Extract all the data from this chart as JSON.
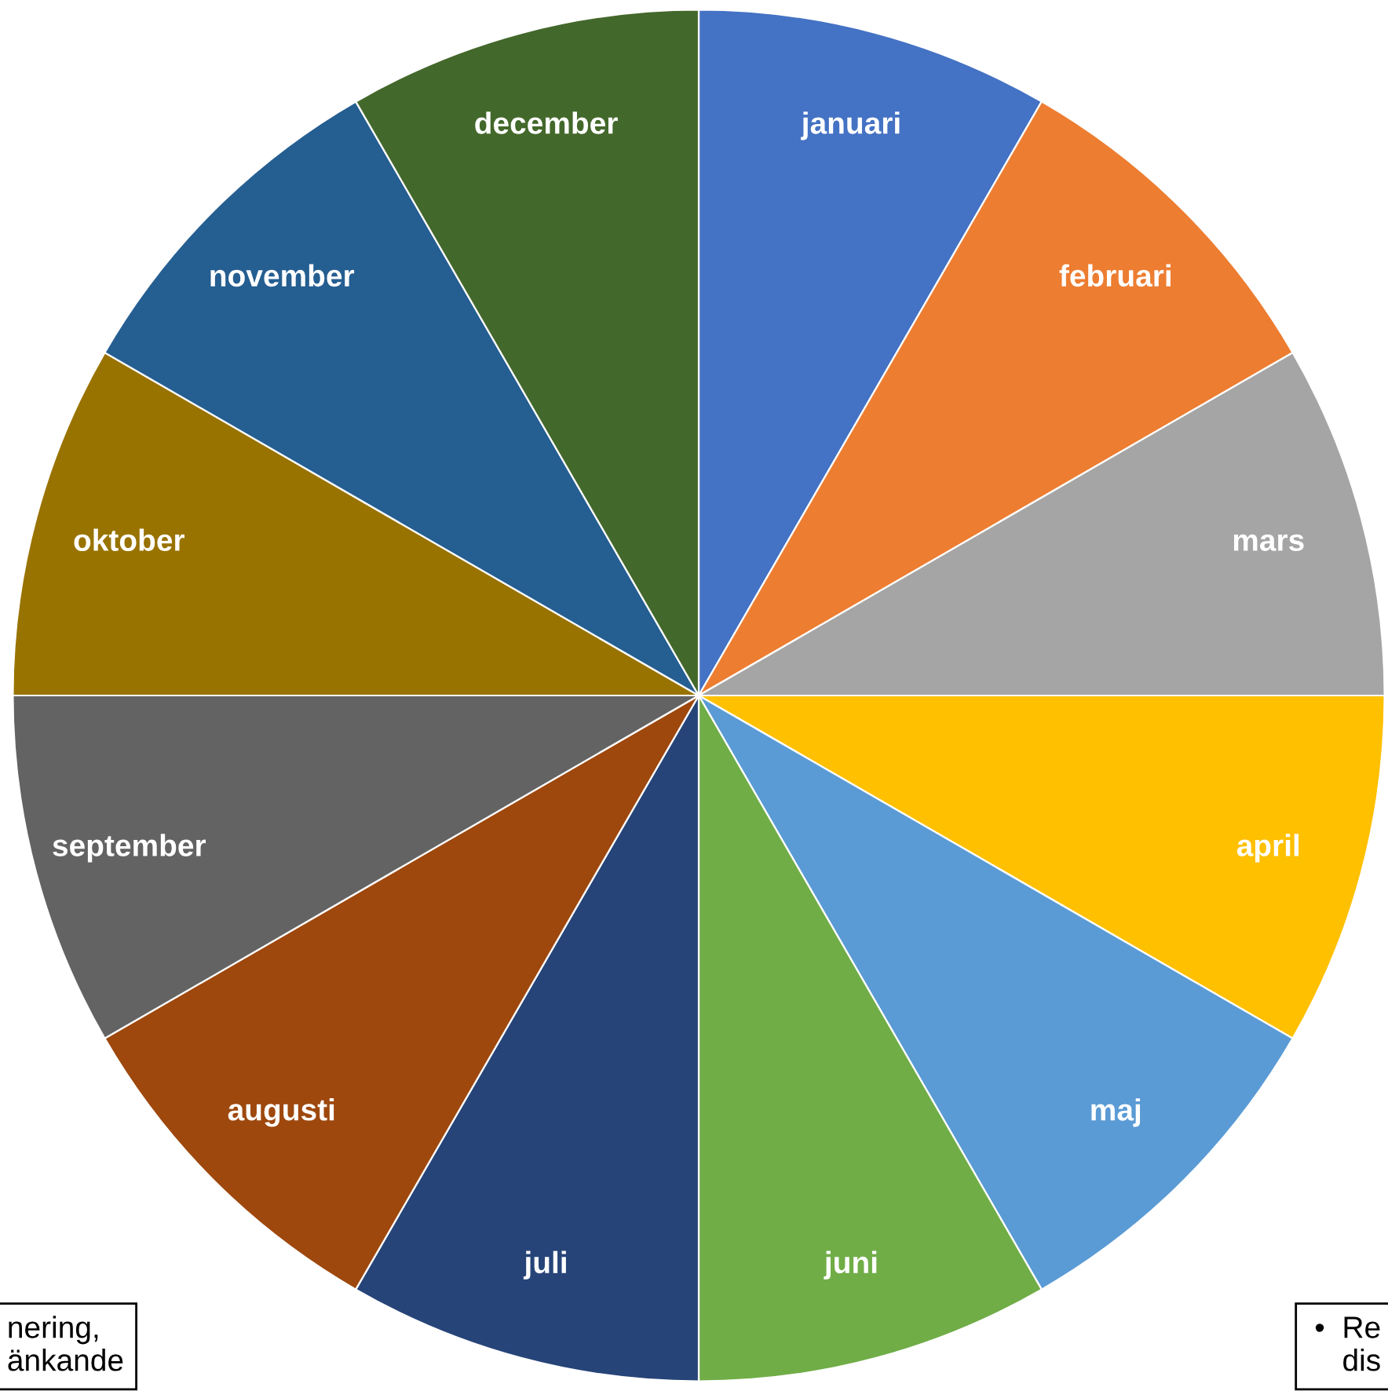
{
  "chart_data": {
    "type": "pie",
    "categories": [
      "januari",
      "februari",
      "mars",
      "april",
      "maj",
      "juni",
      "juli",
      "augusti",
      "september",
      "oktober",
      "november",
      "december"
    ],
    "values": [
      8.33,
      8.33,
      8.33,
      8.33,
      8.33,
      8.33,
      8.33,
      8.33,
      8.33,
      8.33,
      8.33,
      8.33
    ],
    "colors": [
      "#4472c4",
      "#ed7d31",
      "#a5a5a5",
      "#ffc000",
      "#5b9bd5",
      "#70ad47",
      "#264478",
      "#9e480e",
      "#636363",
      "#997300",
      "#255e91",
      "#43682b"
    ],
    "annotations": [
      "nering,\nänkande",
      "•  Re\n    dis"
    ],
    "legend": false
  }
}
